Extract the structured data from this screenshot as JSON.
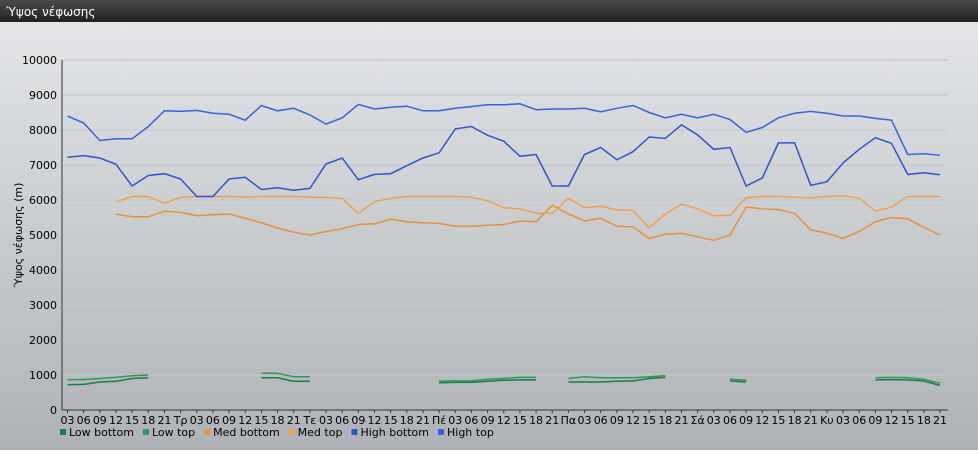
{
  "chart_data": {
    "type": "line",
    "title": "Ύψος νέφωσης",
    "y_label": "Ύψος νέφωσης (m)",
    "categories": [
      "03",
      "06",
      "09",
      "12",
      "15",
      "18",
      "21",
      "Τρ",
      "03",
      "06",
      "09",
      "12",
      "15",
      "18",
      "21",
      "Τε",
      "03",
      "06",
      "09",
      "12",
      "15",
      "18",
      "21",
      "Πέ",
      "03",
      "06",
      "09",
      "12",
      "15",
      "18",
      "21",
      "Πα",
      "03",
      "06",
      "09",
      "12",
      "15",
      "18",
      "21",
      "Σά",
      "03",
      "06",
      "09",
      "12",
      "15",
      "18",
      "21",
      "Κυ",
      "03",
      "06",
      "09",
      "12",
      "15",
      "18",
      "21"
    ],
    "ylim": [
      0,
      10000
    ],
    "yticks": [
      0,
      1000,
      2000,
      3000,
      4000,
      5000,
      6000,
      7000,
      8000,
      9000,
      10000
    ],
    "grid": true,
    "legend": "bottom",
    "series": [
      {
        "name": "Low bottom",
        "color": "#1f7a45",
        "values": [
          720,
          730,
          800,
          820,
          900,
          920,
          null,
          null,
          null,
          null,
          null,
          null,
          920,
          920,
          820,
          820,
          null,
          null,
          null,
          null,
          null,
          null,
          null,
          780,
          790,
          790,
          820,
          850,
          860,
          860,
          null,
          800,
          800,
          800,
          820,
          830,
          900,
          930,
          null,
          null,
          null,
          830,
          800,
          null,
          null,
          null,
          null,
          null,
          null,
          null,
          860,
          870,
          860,
          830,
          700
        ]
      },
      {
        "name": "Low top",
        "color": "#2e9a5a",
        "values": [
          870,
          870,
          900,
          930,
          980,
          1000,
          null,
          null,
          null,
          null,
          null,
          null,
          1050,
          1050,
          950,
          950,
          null,
          null,
          null,
          null,
          null,
          null,
          null,
          820,
          830,
          830,
          880,
          900,
          930,
          930,
          null,
          900,
          950,
          920,
          920,
          920,
          950,
          980,
          null,
          null,
          null,
          880,
          850,
          null,
          null,
          null,
          null,
          null,
          null,
          null,
          920,
          930,
          920,
          880,
          760
        ]
      },
      {
        "name": "Med bottom",
        "color": "#e8913a",
        "values": [
          null,
          null,
          null,
          5600,
          5520,
          5520,
          5680,
          5650,
          5550,
          5580,
          5600,
          5480,
          5350,
          5200,
          5080,
          5000,
          5100,
          5180,
          5300,
          5320,
          5450,
          5380,
          5350,
          5330,
          5250,
          5250,
          5280,
          5300,
          5400,
          5380,
          5850,
          5600,
          5400,
          5480,
          5250,
          5230,
          4900,
          5020,
          5050,
          4950,
          4850,
          5000,
          5800,
          5750,
          5730,
          5620,
          5150,
          5050,
          4900,
          5100,
          5380,
          5500,
          5460,
          5220,
          5000
        ]
      },
      {
        "name": "Med top",
        "color": "#f0a050",
        "values": [
          null,
          null,
          null,
          5950,
          6100,
          6100,
          5900,
          6080,
          6100,
          6100,
          6100,
          6080,
          6100,
          6100,
          6100,
          6080,
          6080,
          6050,
          5620,
          5950,
          6050,
          6100,
          6100,
          6100,
          6100,
          6080,
          5980,
          5780,
          5750,
          5620,
          5620,
          6050,
          5780,
          5820,
          5720,
          5700,
          5200,
          5600,
          5880,
          5750,
          5550,
          5560,
          6070,
          6100,
          6100,
          6080,
          6070,
          6100,
          6120,
          6050,
          5680,
          5800,
          6100,
          6100,
          6100
        ]
      },
      {
        "name": "High bottom",
        "color": "#2f55c8",
        "values": [
          7220,
          7270,
          7200,
          7020,
          6400,
          6700,
          6750,
          6600,
          6100,
          6100,
          6600,
          6650,
          6300,
          6350,
          6280,
          6330,
          7030,
          7200,
          6580,
          6730,
          6750,
          6980,
          7200,
          7350,
          8030,
          8100,
          7850,
          7680,
          7250,
          7300,
          6400,
          6400,
          7300,
          7500,
          7150,
          7380,
          7800,
          7760,
          8150,
          7860,
          7450,
          7500,
          6400,
          6630,
          7630,
          7630,
          6420,
          6520,
          7060,
          7450,
          7780,
          7620,
          6730,
          6780,
          6720
        ]
      },
      {
        "name": "High top",
        "color": "#3a62d8",
        "values": [
          8400,
          8200,
          7700,
          7750,
          7750,
          8100,
          8550,
          8530,
          8560,
          8480,
          8450,
          8280,
          8700,
          8550,
          8620,
          8430,
          8170,
          8350,
          8730,
          8600,
          8650,
          8680,
          8550,
          8550,
          8620,
          8670,
          8720,
          8720,
          8750,
          8580,
          8600,
          8600,
          8620,
          8520,
          8620,
          8700,
          8500,
          8350,
          8450,
          8350,
          8450,
          8300,
          7930,
          8070,
          8350,
          8480,
          8530,
          8480,
          8400,
          8400,
          8330,
          8280,
          7300,
          7320,
          7280
        ]
      }
    ]
  }
}
